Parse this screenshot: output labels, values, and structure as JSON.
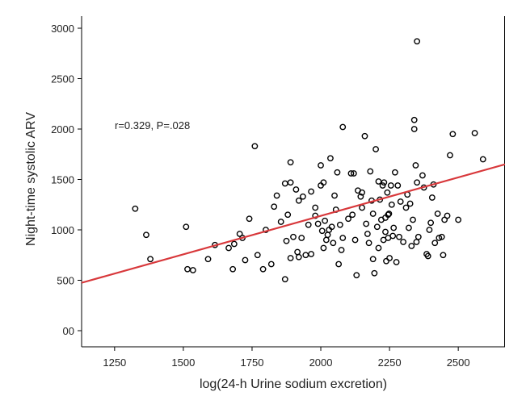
{
  "chart_data": {
    "type": "scatter",
    "title": "",
    "xlabel": "log(24-h Urine sodium excretion)",
    "ylabel": "Night-time systolic ARV",
    "annotation": "r=0.329, P=.028",
    "xlim": [
      1130,
      2670
    ],
    "ylim": [
      -160,
      3120
    ],
    "x_ticks": [
      1250,
      1500,
      1750,
      2000,
      2250,
      2500
    ],
    "x_tick_labels": [
      "1250",
      "1500",
      "1750",
      "2000",
      "2250",
      "2500"
    ],
    "y_ticks": [
      0,
      500,
      1000,
      1500,
      2000,
      2500,
      3000
    ],
    "y_tick_labels": [
      "00",
      "500",
      "1000",
      "1500",
      "2000",
      "2500",
      "3000"
    ],
    "grid": false,
    "fit_line": {
      "color": "#d8383b",
      "x": [
        1130,
        2670
      ],
      "y": [
        475,
        1650
      ]
    },
    "points": [
      [
        1325,
        1210
      ],
      [
        1365,
        950
      ],
      [
        1380,
        710
      ],
      [
        1510,
        1030
      ],
      [
        1515,
        610
      ],
      [
        1535,
        600
      ],
      [
        1590,
        710
      ],
      [
        1615,
        850
      ],
      [
        1665,
        820
      ],
      [
        1680,
        610
      ],
      [
        1685,
        860
      ],
      [
        1705,
        960
      ],
      [
        1715,
        920
      ],
      [
        1725,
        700
      ],
      [
        1740,
        1110
      ],
      [
        1760,
        1830
      ],
      [
        1770,
        750
      ],
      [
        1790,
        610
      ],
      [
        1800,
        1000
      ],
      [
        1820,
        660
      ],
      [
        1830,
        1230
      ],
      [
        1840,
        1340
      ],
      [
        1855,
        1080
      ],
      [
        1870,
        1460
      ],
      [
        1870,
        510
      ],
      [
        1875,
        890
      ],
      [
        1880,
        1150
      ],
      [
        1890,
        1470
      ],
      [
        1890,
        1670
      ],
      [
        1890,
        720
      ],
      [
        1900,
        930
      ],
      [
        1910,
        1400
      ],
      [
        1915,
        780
      ],
      [
        1920,
        1290
      ],
      [
        1920,
        730
      ],
      [
        1930,
        920
      ],
      [
        1935,
        1330
      ],
      [
        1945,
        750
      ],
      [
        1955,
        1050
      ],
      [
        1965,
        760
      ],
      [
        1965,
        1380
      ],
      [
        1980,
        1220
      ],
      [
        1980,
        1140
      ],
      [
        1990,
        1060
      ],
      [
        2000,
        1640
      ],
      [
        2000,
        1440
      ],
      [
        2005,
        990
      ],
      [
        2010,
        1470
      ],
      [
        2010,
        820
      ],
      [
        2015,
        1090
      ],
      [
        2020,
        900
      ],
      [
        2025,
        950
      ],
      [
        2030,
        1000
      ],
      [
        2035,
        1710
      ],
      [
        2040,
        1030
      ],
      [
        2045,
        870
      ],
      [
        2050,
        1340
      ],
      [
        2055,
        1200
      ],
      [
        2060,
        1570
      ],
      [
        2065,
        660
      ],
      [
        2070,
        1050
      ],
      [
        2075,
        800
      ],
      [
        2080,
        2020
      ],
      [
        2080,
        920
      ],
      [
        2100,
        1110
      ],
      [
        2110,
        1560
      ],
      [
        2115,
        1150
      ],
      [
        2120,
        1560
      ],
      [
        2125,
        900
      ],
      [
        2130,
        550
      ],
      [
        2135,
        1390
      ],
      [
        2145,
        1330
      ],
      [
        2150,
        1370
      ],
      [
        2150,
        1220
      ],
      [
        2160,
        1930
      ],
      [
        2165,
        1060
      ],
      [
        2170,
        960
      ],
      [
        2175,
        870
      ],
      [
        2180,
        1580
      ],
      [
        2185,
        1290
      ],
      [
        2190,
        1160
      ],
      [
        2190,
        710
      ],
      [
        2195,
        570
      ],
      [
        2200,
        1800
      ],
      [
        2205,
        1030
      ],
      [
        2210,
        1480
      ],
      [
        2210,
        820
      ],
      [
        2215,
        1300
      ],
      [
        2220,
        1100
      ],
      [
        2225,
        1440
      ],
      [
        2228,
        900
      ],
      [
        2230,
        1470
      ],
      [
        2235,
        1120
      ],
      [
        2235,
        980
      ],
      [
        2238,
        690
      ],
      [
        2242,
        1370
      ],
      [
        2245,
        920
      ],
      [
        2245,
        1150
      ],
      [
        2248,
        1160
      ],
      [
        2250,
        720
      ],
      [
        2255,
        1440
      ],
      [
        2258,
        1250
      ],
      [
        2262,
        940
      ],
      [
        2265,
        1020
      ],
      [
        2270,
        1570
      ],
      [
        2275,
        680
      ],
      [
        2280,
        1440
      ],
      [
        2285,
        930
      ],
      [
        2290,
        1280
      ],
      [
        2300,
        880
      ],
      [
        2310,
        1220
      ],
      [
        2315,
        1350
      ],
      [
        2320,
        1020
      ],
      [
        2325,
        1260
      ],
      [
        2330,
        840
      ],
      [
        2335,
        1100
      ],
      [
        2340,
        2090
      ],
      [
        2340,
        2000
      ],
      [
        2345,
        1640
      ],
      [
        2348,
        880
      ],
      [
        2350,
        2870
      ],
      [
        2350,
        1470
      ],
      [
        2355,
        930
      ],
      [
        2370,
        1540
      ],
      [
        2375,
        1420
      ],
      [
        2385,
        760
      ],
      [
        2390,
        740
      ],
      [
        2395,
        1000
      ],
      [
        2400,
        1070
      ],
      [
        2405,
        1320
      ],
      [
        2410,
        1450
      ],
      [
        2415,
        870
      ],
      [
        2425,
        1160
      ],
      [
        2430,
        920
      ],
      [
        2440,
        930
      ],
      [
        2445,
        750
      ],
      [
        2450,
        1100
      ],
      [
        2460,
        1140
      ],
      [
        2470,
        1740
      ],
      [
        2480,
        1950
      ],
      [
        2500,
        1100
      ],
      [
        2560,
        1960
      ],
      [
        2590,
        1700
      ]
    ]
  }
}
